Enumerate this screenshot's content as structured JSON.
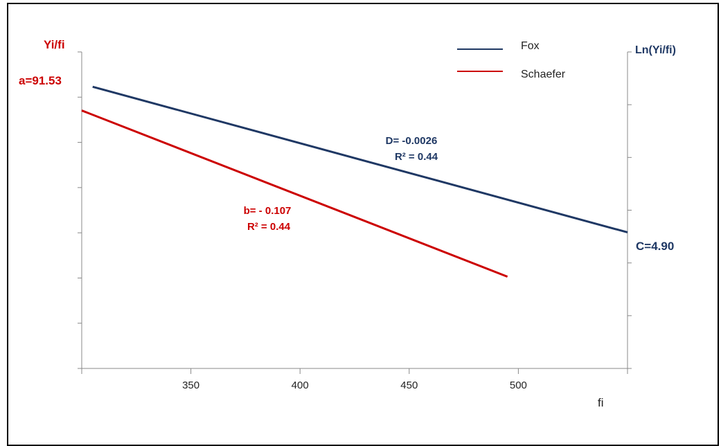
{
  "chart_data": {
    "type": "line",
    "x_axis_label": "fi",
    "left_axis_label": "Yi/fi",
    "right_axis_label": "Ln(Yi/fi)",
    "x_ticks": [
      "350",
      "400",
      "450",
      "500"
    ],
    "xlim": [
      300,
      550
    ],
    "series": [
      {
        "name": "Fox",
        "color": "#1f3864",
        "x": [
          305,
          550
        ],
        "y_frac": [
          0.89,
          0.43
        ],
        "labels": {
          "d": "D= -0.0026",
          "r2": "R² = 0.44",
          "intercept": "C=4.90"
        }
      },
      {
        "name": "Schaefer",
        "color": "#cc0000",
        "x": [
          300,
          495
        ],
        "y_frac": [
          0.815,
          0.29
        ],
        "labels": {
          "b": "b= - 0.107",
          "r2": "R² = 0.44",
          "intercept": "a=91.53"
        }
      }
    ],
    "legend": [
      "Fox",
      "Schaefer"
    ],
    "legend_position": "top-right"
  }
}
